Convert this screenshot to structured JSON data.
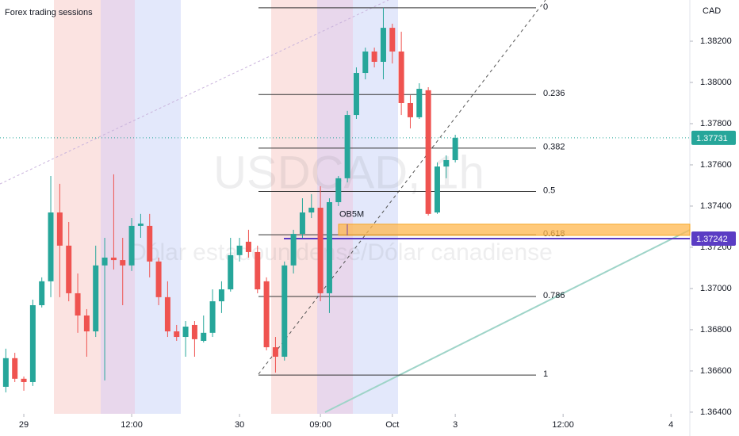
{
  "chart_data": {
    "type": "candlestick",
    "title": "Forex trading sessions",
    "watermark": "USDCAD, 1h",
    "subtitle": "Dólar estadounidense/Dólar canadiense",
    "y_label": "CAD",
    "colors": {
      "up": "#26a69a",
      "down": "#ef5350"
    },
    "x": [
      -2,
      -1,
      0,
      1,
      2,
      3,
      4,
      5,
      6,
      7,
      8,
      9,
      10,
      11,
      12,
      13,
      14,
      15,
      16,
      17,
      18,
      19,
      20,
      21,
      22,
      23,
      24,
      25,
      26,
      27,
      28,
      29,
      30,
      31,
      32,
      33,
      34,
      35,
      36,
      37,
      38,
      39,
      40,
      41,
      42,
      43,
      44,
      45,
      46,
      47,
      48
    ],
    "open": [
      1.36523,
      1.36662,
      1.36562,
      1.36546,
      1.36919,
      1.37035,
      1.37369,
      1.37208,
      1.36977,
      1.36869,
      1.36792,
      1.37112,
      1.3715,
      1.37138,
      1.37112,
      1.37304,
      1.37304,
      1.37131,
      1.36958,
      1.36792,
      1.36765,
      1.36823,
      1.36746,
      1.36785,
      1.36938,
      1.36996,
      1.37162,
      1.37227,
      1.37177,
      1.37035,
      1.36715,
      1.36669,
      1.37112,
      1.37265,
      1.37369,
      1.37392,
      1.36977,
      1.37419,
      1.37535,
      1.37842,
      1.38046,
      1.3815,
      1.381,
      1.38265,
      1.3815,
      1.379,
      1.37831,
      1.37962,
      1.37369,
      1.37592,
      1.37623
    ],
    "high": [
      1.36708,
      1.36688,
      1.36573,
      1.36946,
      1.37054,
      1.37546,
      1.37508,
      1.37323,
      1.37073,
      1.369,
      1.37208,
      1.37246,
      1.37554,
      1.37246,
      1.37342,
      1.37362,
      1.37362,
      1.3715,
      1.37035,
      1.36823,
      1.36842,
      1.36842,
      1.36869,
      1.36996,
      1.37035,
      1.37246,
      1.37246,
      1.37285,
      1.37208,
      1.37054,
      1.36765,
      1.37131,
      1.37285,
      1.37438,
      1.37458,
      1.37496,
      1.37438,
      1.37546,
      1.37862,
      1.38073,
      1.38169,
      1.38169,
      1.38362,
      1.38285,
      1.38246,
      1.37938,
      1.37996,
      1.37977,
      1.37612,
      1.37646,
      1.37746
    ],
    "low": [
      1.36496,
      1.36546,
      1.36504,
      1.36527,
      1.36908,
      1.36958,
      1.36958,
      1.36938,
      1.36785,
      1.36669,
      1.36765,
      1.36554,
      1.37092,
      1.36919,
      1.37085,
      1.37246,
      1.37054,
      1.36919,
      1.36765,
      1.36746,
      1.36669,
      1.36669,
      1.36738,
      1.36765,
      1.36881,
      1.36985,
      1.37131,
      1.3715,
      1.36977,
      1.367,
      1.36592,
      1.3665,
      1.37073,
      1.37246,
      1.37342,
      1.36938,
      1.36881,
      1.374,
      1.37515,
      1.37823,
      1.38015,
      1.38073,
      1.38015,
      1.38092,
      1.37842,
      1.37777,
      1.37823,
      1.37354,
      1.37362,
      1.37535,
      1.37612
    ],
    "close": [
      1.36662,
      1.36562,
      1.36546,
      1.36919,
      1.37035,
      1.37369,
      1.37208,
      1.36977,
      1.36869,
      1.36792,
      1.37112,
      1.3715,
      1.37138,
      1.37112,
      1.37304,
      1.37315,
      1.37131,
      1.36958,
      1.36792,
      1.36765,
      1.36815,
      1.36754,
      1.36785,
      1.36938,
      1.36996,
      1.37162,
      1.37208,
      1.37177,
      1.36996,
      1.36715,
      1.36669,
      1.37112,
      1.37265,
      1.37369,
      1.37392,
      1.36977,
      1.37419,
      1.37535,
      1.37842,
      1.38046,
      1.3815,
      1.381,
      1.38265,
      1.3815,
      1.379,
      1.37831,
      1.37969,
      1.37362,
      1.37592,
      1.37623,
      1.37731
    ],
    "xlim": [
      -2.65,
      74.1
    ],
    "xticks": [
      {
        "value": 0,
        "label": "29"
      },
      {
        "value": 12,
        "label": "12:00"
      },
      {
        "value": 24,
        "label": "30"
      },
      {
        "value": 33,
        "label": "09:00"
      },
      {
        "value": 41,
        "label": "Oct"
      },
      {
        "value": 48,
        "label": "3"
      },
      {
        "value": 60,
        "label": "12:00"
      },
      {
        "value": 72,
        "label": "4"
      }
    ],
    "ylim": [
      1.36392,
      1.384
    ],
    "yticks": [
      {
        "value": 1.364,
        "label": "1.36400"
      },
      {
        "value": 1.366,
        "label": "1.36600"
      },
      {
        "value": 1.368,
        "label": "1.36800"
      },
      {
        "value": 1.37,
        "label": "1.37000"
      },
      {
        "value": 1.372,
        "label": "1.37200"
      },
      {
        "value": 1.374,
        "label": "1.37400"
      },
      {
        "value": 1.376,
        "label": "1.37600"
      },
      {
        "value": 1.378,
        "label": "1.37800"
      },
      {
        "value": 1.38,
        "label": "1.38000"
      },
      {
        "value": 1.382,
        "label": "1.38200"
      }
    ],
    "fibonacci": {
      "levels": [
        0,
        0.236,
        0.382,
        0.5,
        0.618,
        0.786,
        1
      ],
      "start": 1.38362,
      "end": 1.3658
    },
    "order_block": {
      "label": "OB5M",
      "low": 1.37258,
      "high": 1.37312
    },
    "price_lines": [
      {
        "value": 1.37731,
        "color": "#26a69a"
      },
      {
        "value": 1.37242,
        "color": "#5b3cc4"
      }
    ]
  }
}
